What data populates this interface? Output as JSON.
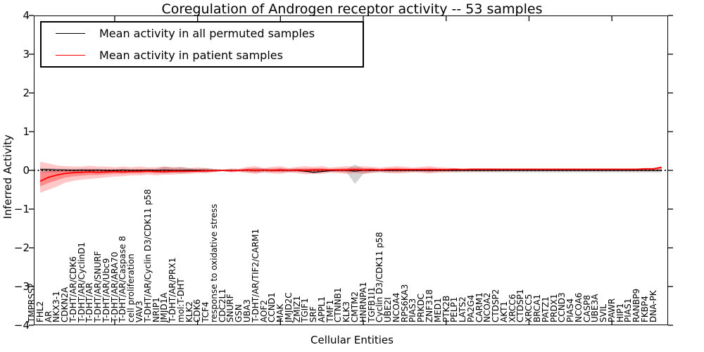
{
  "chart_data": {
    "type": "line",
    "title": "Coregulation of Androgen receptor activity -- 53 samples",
    "xlabel": "Cellular Entities",
    "ylabel": "Inferred Activity",
    "ylim": [
      -4,
      4
    ],
    "yticks": [
      4,
      3,
      2,
      1,
      0,
      -1,
      -2,
      -3,
      -4
    ],
    "grid": false,
    "legend_position": "upper left",
    "zero_line": {
      "style": "dotted",
      "color": "#000000",
      "y": 0
    },
    "categories": [
      "TMPRSS2",
      "FHL2",
      "AR",
      "NKX3-1",
      "CDKN2A",
      "T-DHT/AR/CDK6",
      "T-DHT/AR/CyclinD1",
      "T-DHT/AR",
      "T-DHT/AR/SNURF",
      "T-DHT/AR/Ubc9",
      "T-DHT/AR/ARA70",
      "T-DHT/AR/Caspase 8",
      "cell proliferation",
      "VAV3",
      "T-DHT/AR/Cyclin D3/CDK11 p58",
      "NRIP1",
      "JMJD1A",
      "T-DHT/AR/PRX1",
      "mol:T-DHT",
      "KLK2",
      "CDK6",
      "TCF4",
      "response to oxidative stress",
      "CDC2L1",
      "SNURF",
      "GSN",
      "UBA3",
      "T-DHT/AR/TIF2/CARM1",
      "AOF2",
      "CCND1",
      "MAK",
      "JMJD2C",
      "ZMIZ1",
      "TGIF1",
      "SRF",
      "APPL1",
      "TMF1",
      "CTNNB1",
      "KLK3",
      "CMTM2",
      "HNRNPA1",
      "TGFB1I1",
      "Cyclin D3/CDK11 p58",
      "UBE2I",
      "NCOA4",
      "RPS6KA3",
      "PIAS3",
      "PRKDC",
      "ZNF318",
      "MED1",
      "PTK2B",
      "PELP1",
      "LATS2",
      "PA2G4",
      "CARM1",
      "NCOA2",
      "CTDSP2",
      "AKT1",
      "XRCC6",
      "CTDSP1",
      "XRCC5",
      "BRCA1",
      "PATZ1",
      "PRDX1",
      "CCND3",
      "PIAS4",
      "NCOA6",
      "CASP8",
      "UBE3A",
      "SVIL",
      "PAWR",
      "HIP1",
      "PIAS1",
      "RANBP9",
      "FKBP4",
      "DNA-PK"
    ],
    "series": [
      {
        "name": "Mean activity in all permuted samples",
        "color": "#000000",
        "band_color": "rgba(128,128,128,0.35)",
        "values": [
          0.02,
          0.02,
          0.01,
          0.01,
          0,
          0.01,
          0,
          0.01,
          0,
          0,
          0.01,
          0,
          0,
          0.01,
          0,
          0.01,
          0,
          0,
          0.01,
          0,
          0,
          0,
          0,
          0,
          0,
          0.01,
          0,
          0.01,
          0,
          0,
          0,
          0,
          -0.02,
          -0.05,
          -0.03,
          -0.01,
          0,
          0,
          -0.02,
          0,
          0,
          0,
          0,
          0,
          0,
          0,
          0,
          0,
          0,
          0,
          0,
          0,
          0,
          0,
          0,
          0,
          0,
          0,
          0,
          0,
          0,
          0,
          0,
          0,
          0,
          0,
          0,
          0,
          0,
          0,
          0,
          0,
          0,
          0,
          0,
          0
        ],
        "band_upper": [
          0.06,
          0.05,
          0.05,
          0.04,
          0.04,
          0.04,
          0.04,
          0.04,
          0.03,
          0.03,
          0.04,
          0.03,
          0.03,
          0.03,
          0.04,
          0.1,
          0.07,
          0.09,
          0.06,
          0.04,
          0.06,
          0.03,
          0.02,
          0.03,
          0.03,
          0.04,
          0.06,
          0.05,
          0.04,
          0.04,
          0.05,
          0.04,
          0.04,
          0.05,
          0.04,
          0.03,
          0.04,
          0.04,
          0.15,
          0.05,
          0.04,
          0.03,
          0.04,
          0.04,
          0.03,
          0.03,
          0.03,
          0.04,
          0.03,
          0.03,
          0.03,
          0.03,
          0.03,
          0.03,
          0.03,
          0.03,
          0.03,
          0.03,
          0.03,
          0.03,
          0.03,
          0.03,
          0.03,
          0.03,
          0.03,
          0.03,
          0.03,
          0.03,
          0.03,
          0.03,
          0.03,
          0.03,
          0.03,
          0.03,
          0.03,
          0.03
        ],
        "band_lower": [
          -0.06,
          -0.05,
          -0.05,
          -0.04,
          -0.04,
          -0.04,
          -0.04,
          -0.04,
          -0.03,
          -0.03,
          -0.04,
          -0.03,
          -0.03,
          -0.03,
          -0.04,
          -0.08,
          -0.06,
          -0.08,
          -0.05,
          -0.04,
          -0.06,
          -0.03,
          -0.02,
          -0.03,
          -0.03,
          -0.04,
          -0.06,
          -0.05,
          -0.04,
          -0.04,
          -0.05,
          -0.04,
          -0.05,
          -0.08,
          -0.05,
          -0.04,
          -0.04,
          -0.05,
          -0.35,
          -0.09,
          -0.05,
          -0.04,
          -0.05,
          -0.05,
          -0.04,
          -0.04,
          -0.04,
          -0.05,
          -0.04,
          -0.04,
          -0.05,
          -0.05,
          -0.05,
          -0.05,
          -0.05,
          -0.05,
          -0.05,
          -0.05,
          -0.05,
          -0.05,
          -0.05,
          -0.05,
          -0.05,
          -0.05,
          -0.05,
          -0.05,
          -0.05,
          -0.05,
          -0.05,
          -0.05,
          -0.05,
          -0.05,
          -0.05,
          -0.05,
          -0.05,
          -0.05
        ]
      },
      {
        "name": "Mean activity in patient samples",
        "color": "#ff0000",
        "band_color": "rgba(255,0,0,0.22)",
        "values": [
          -0.28,
          -0.18,
          -0.12,
          -0.08,
          -0.06,
          -0.05,
          -0.04,
          -0.05,
          -0.04,
          -0.03,
          -0.04,
          -0.03,
          -0.03,
          -0.02,
          -0.03,
          -0.03,
          -0.02,
          -0.02,
          -0.02,
          -0.02,
          -0.01,
          -0.01,
          0,
          -0.01,
          0,
          0.01,
          0,
          0.01,
          0,
          0.01,
          0,
          0.01,
          0,
          0.01,
          0.01,
          0.01,
          0.01,
          0.01,
          0.02,
          0.01,
          0.02,
          0.01,
          0.02,
          0.02,
          0.02,
          0.02,
          0.02,
          0.02,
          0.02,
          0.02,
          0.03,
          0.02,
          0.03,
          0.03,
          0.03,
          0.03,
          0.03,
          0.03,
          0.03,
          0.03,
          0.03,
          0.03,
          0.03,
          0.03,
          0.03,
          0.03,
          0.03,
          0.03,
          0.03,
          0.03,
          0.03,
          0.03,
          0.03,
          0.04,
          0.04,
          0.08
        ],
        "band_upper": [
          0.22,
          0.18,
          0.13,
          0.11,
          0.1,
          0.1,
          0.12,
          0.1,
          0.1,
          0.08,
          0.1,
          0.08,
          0.1,
          0.08,
          0.08,
          0.1,
          0.08,
          0.08,
          0.06,
          0.08,
          0.06,
          0.04,
          0.02,
          0.05,
          0.04,
          0.09,
          0.11,
          0.06,
          0.09,
          0.11,
          0.06,
          0.09,
          0.11,
          0.09,
          0.11,
          0.07,
          0.09,
          0.11,
          0.09,
          0.11,
          0.09,
          0.07,
          0.09,
          0.11,
          0.09,
          0.07,
          0.09,
          0.11,
          0.08,
          0.07,
          0.06,
          0.05,
          0.05,
          0.05,
          0.05,
          0.05,
          0.04,
          0.04,
          0.04,
          0.04,
          0.04,
          0.04,
          0.04,
          0.04,
          0.04,
          0.04,
          0.04,
          0.04,
          0.04,
          0.04,
          0.04,
          0.04,
          0.04,
          0.05,
          0.05,
          0.1
        ],
        "band_lower": [
          -0.58,
          -0.5,
          -0.42,
          -0.32,
          -0.27,
          -0.24,
          -0.22,
          -0.2,
          -0.18,
          -0.16,
          -0.15,
          -0.13,
          -0.13,
          -0.11,
          -0.13,
          -0.11,
          -0.11,
          -0.09,
          -0.09,
          -0.07,
          -0.07,
          -0.05,
          -0.02,
          -0.05,
          -0.04,
          -0.07,
          -0.09,
          -0.05,
          -0.08,
          -0.09,
          -0.05,
          -0.07,
          -0.1,
          -0.09,
          -0.09,
          -0.06,
          -0.07,
          -0.09,
          -0.07,
          -0.09,
          -0.07,
          -0.05,
          -0.07,
          -0.08,
          -0.07,
          -0.05,
          -0.06,
          -0.08,
          -0.06,
          -0.05,
          -0.04,
          -0.03,
          -0.03,
          -0.03,
          -0.03,
          -0.03,
          -0.02,
          -0.02,
          -0.02,
          -0.02,
          -0.02,
          -0.02,
          -0.02,
          -0.02,
          -0.02,
          -0.02,
          -0.02,
          -0.02,
          -0.02,
          -0.02,
          -0.02,
          -0.02,
          -0.02,
          -0.02,
          -0.02,
          -0.02
        ]
      }
    ]
  }
}
